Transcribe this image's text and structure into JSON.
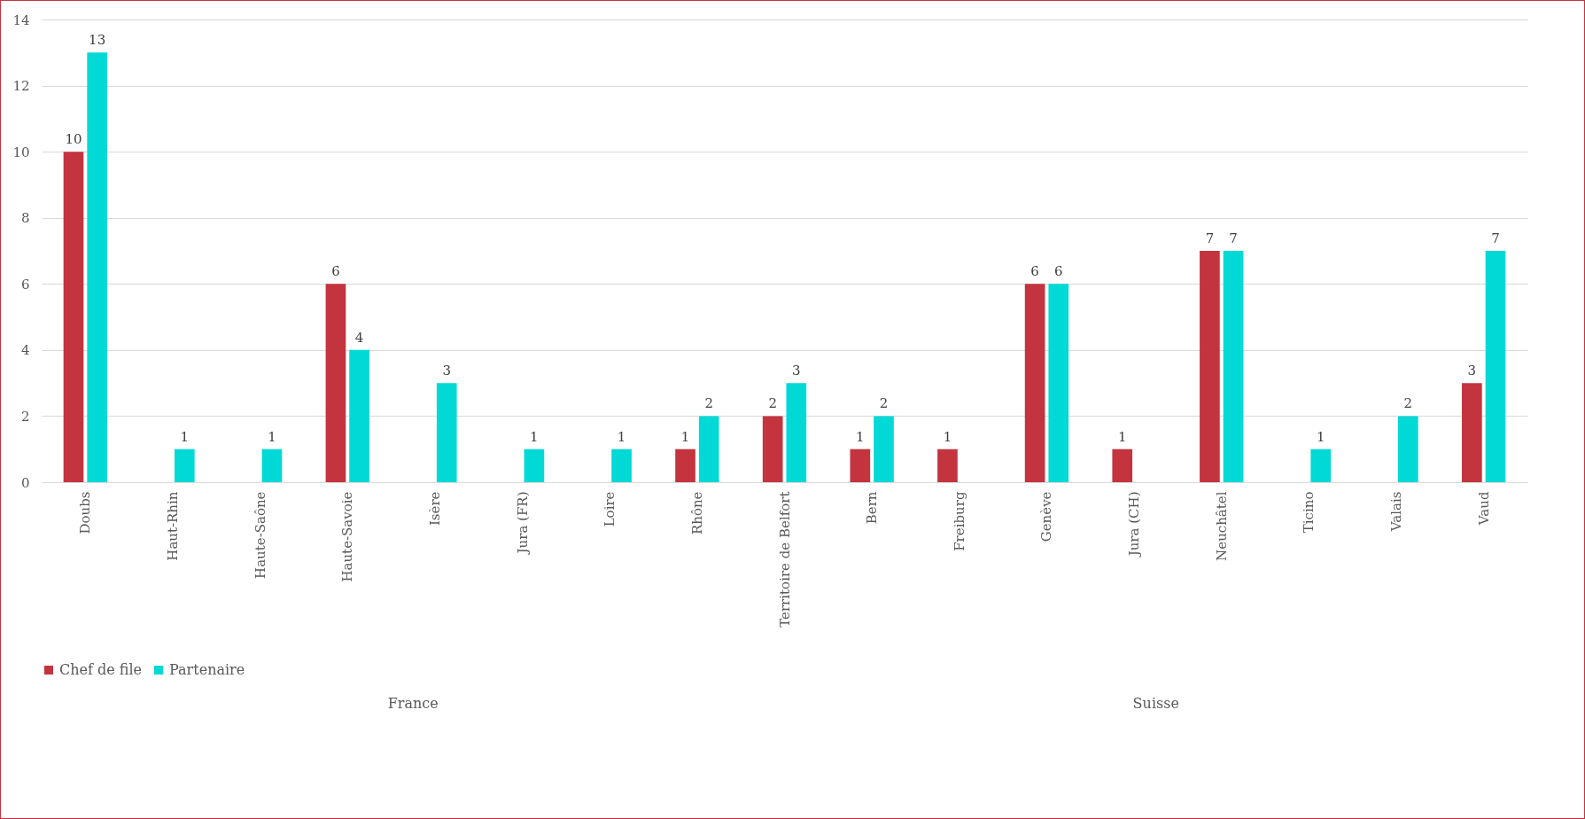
{
  "chart_data": {
    "type": "bar",
    "categories": [
      "Doubs",
      "Haut-Rhin",
      "Haute-Saône",
      "Haute-Savoie",
      "Isère",
      "Jura (FR)",
      "Loire",
      "Rhône",
      "Territoire de Belfort",
      "Bern",
      "Freiburg",
      "Genève",
      "Jura (CH)",
      "Neuchâtel",
      "Ticino",
      "Valais",
      "Vaud"
    ],
    "series": [
      {
        "name": "Chef de file",
        "color": "#c3343f",
        "values": [
          10,
          null,
          null,
          6,
          null,
          null,
          null,
          1,
          2,
          1,
          1,
          6,
          1,
          7,
          null,
          null,
          3
        ]
      },
      {
        "name": "Partenaire",
        "color": "#00d9d5",
        "values": [
          13,
          1,
          1,
          4,
          3,
          1,
          1,
          2,
          3,
          2,
          null,
          6,
          null,
          7,
          1,
          2,
          7
        ]
      }
    ],
    "ylim": [
      0,
      14
    ],
    "yticks": [
      0,
      2,
      4,
      6,
      8,
      10,
      12,
      14
    ],
    "grid": "y",
    "legend": "bottom",
    "data_labels": true,
    "annotations": [
      "France",
      "Suisse"
    ]
  }
}
